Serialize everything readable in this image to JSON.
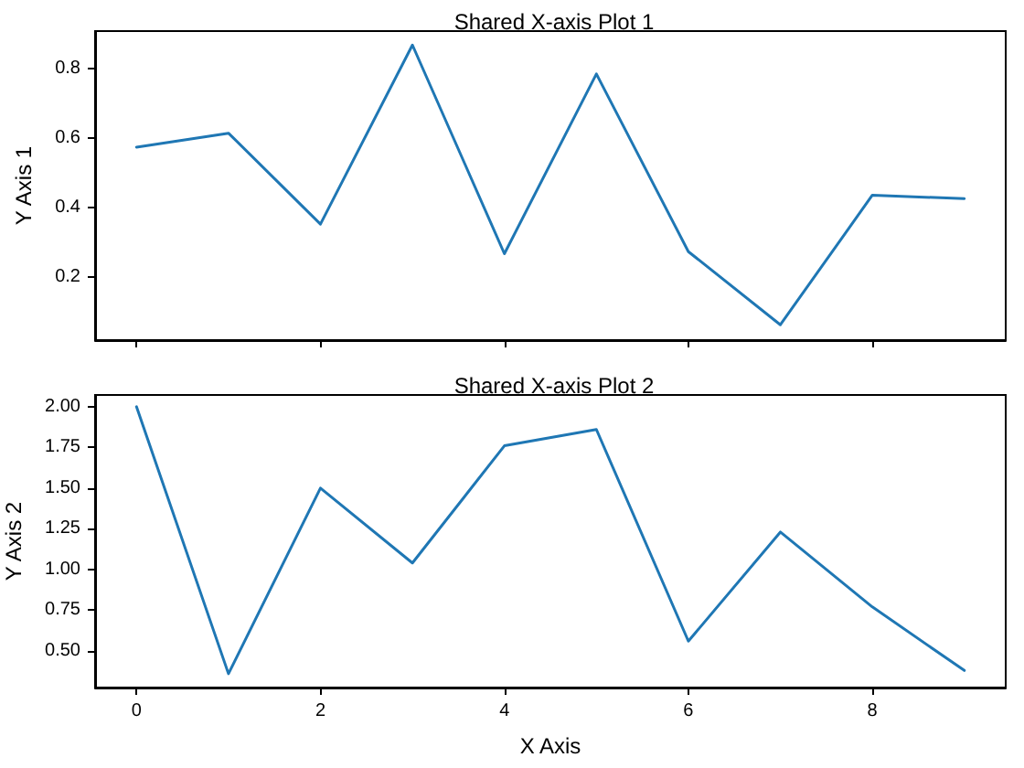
{
  "chart_data": [
    {
      "type": "line",
      "title": "Shared X-axis Plot 1",
      "ylabel": "Y Axis 1",
      "x": [
        0,
        1,
        2,
        3,
        4,
        5,
        6,
        7,
        8,
        9
      ],
      "series": [
        {
          "color": "#1f77b4",
          "values": [
            0.574,
            0.614,
            0.353,
            0.867,
            0.268,
            0.784,
            0.274,
            0.064,
            0.436,
            0.426
          ]
        }
      ],
      "xlim": [
        -0.45,
        9.45
      ],
      "xticks": [
        {
          "value": 0,
          "label": null
        },
        {
          "value": 2,
          "label": null
        },
        {
          "value": 4,
          "label": null
        },
        {
          "value": 6,
          "label": null
        },
        {
          "value": 8,
          "label": null
        }
      ],
      "ylim": [
        0.02,
        0.907
      ],
      "yticks": [
        0.2,
        0.4,
        0.6,
        0.8
      ],
      "tick_labels": "y",
      "grid": false,
      "marker": "none",
      "line_style": "solid"
    },
    {
      "type": "line",
      "title": "Shared X-axis Plot 2",
      "xlabel": "X Axis",
      "ylabel": "Y Axis 2",
      "x": [
        0,
        1,
        2,
        3,
        4,
        5,
        6,
        7,
        8,
        9
      ],
      "series": [
        {
          "color": "#1f77b4",
          "values": [
            2.0,
            0.36,
            1.5,
            1.04,
            1.76,
            1.86,
            0.56,
            1.23,
            0.77,
            0.38
          ]
        }
      ],
      "xlim": [
        -0.45,
        9.45
      ],
      "xticks": [
        0,
        2,
        4,
        6,
        8
      ],
      "ylim": [
        0.275,
        2.072
      ],
      "yticks": [
        {
          "value": 0.5,
          "label": "0.50"
        },
        {
          "value": 0.75,
          "label": "0.75"
        },
        {
          "value": 1,
          "label": "1.00"
        },
        {
          "value": 1.25,
          "label": "1.25"
        },
        {
          "value": 1.5,
          "label": "1.50"
        },
        {
          "value": 1.75,
          "label": "1.75"
        },
        {
          "value": 2,
          "label": "2.00"
        }
      ],
      "grid": false,
      "marker": "none",
      "line_style": "solid"
    }
  ]
}
